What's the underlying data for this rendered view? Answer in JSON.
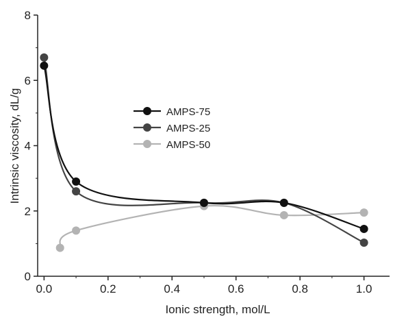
{
  "chart_data": {
    "type": "line",
    "xlabel": "Ionic strength, mol/L",
    "ylabel": "Intrinsic viscosity, dL/g",
    "xlim": [
      -0.02,
      1.08
    ],
    "ylim": [
      0,
      8
    ],
    "xticks": [
      0.0,
      0.2,
      0.4,
      0.6,
      0.8,
      1.0
    ],
    "xtick_labels": [
      "0.0",
      "0.2",
      "0.4",
      "0.6",
      "0.8",
      "1.0"
    ],
    "yticks": [
      0,
      2,
      4,
      6,
      8
    ],
    "ytick_labels": [
      "0",
      "2",
      "4",
      "6",
      "8"
    ],
    "grid": false,
    "legend_position": "center-left",
    "series": [
      {
        "name": "AMPS-75",
        "color": "#111111",
        "x": [
          0.0,
          0.1,
          0.5,
          0.75,
          1.0
        ],
        "y": [
          6.45,
          2.9,
          2.25,
          2.25,
          1.45
        ]
      },
      {
        "name": "AMPS-25",
        "color": "#444444",
        "x": [
          0.0,
          0.1,
          0.5,
          0.75,
          1.0
        ],
        "y": [
          6.7,
          2.6,
          2.25,
          2.25,
          1.03
        ]
      },
      {
        "name": "AMPS-50",
        "color": "#b3b3b3",
        "x": [
          0.05,
          0.1,
          0.5,
          0.75,
          1.0
        ],
        "y": [
          0.87,
          1.4,
          2.15,
          1.87,
          1.95
        ]
      }
    ]
  }
}
